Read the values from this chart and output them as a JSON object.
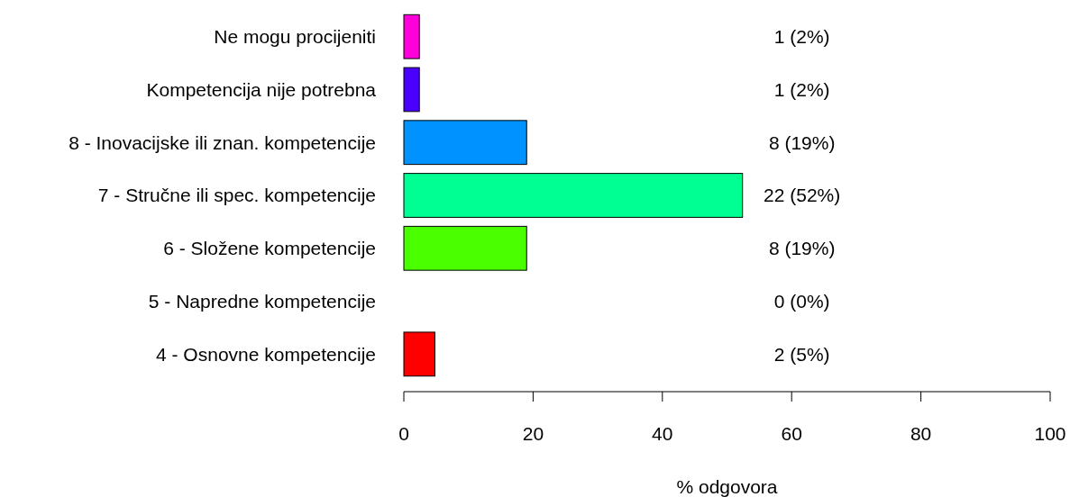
{
  "chart_data": {
    "type": "bar",
    "orientation": "horizontal",
    "xlabel": "% odgovora",
    "categories": [
      "Ne mogu procijeniti",
      "Kompetencija nije potrebna",
      "8 - Inovacijske ili znan. kompetencije",
      "7 - Stručne ili spec. kompetencije",
      "6 - Složene kompetencije",
      "5 - Napredne kompetencije",
      "4 - Osnovne kompetencije"
    ],
    "values": [
      2.4,
      2.4,
      19,
      52.4,
      19,
      0,
      4.8
    ],
    "value_labels": [
      "1 (2%)",
      "1 (2%)",
      "8 (19%)",
      "22 (52%)",
      "8 (19%)",
      "0 (0%)",
      "2 (5%)"
    ],
    "colors": [
      "#ff00db",
      "#4900ff",
      "#0092ff",
      "#00ff92",
      "#49ff00",
      "#ffdb00",
      "#ff0000"
    ],
    "xlim": [
      0,
      100
    ],
    "xticks": [
      0,
      20,
      40,
      60,
      80,
      100
    ],
    "grid": false
  }
}
